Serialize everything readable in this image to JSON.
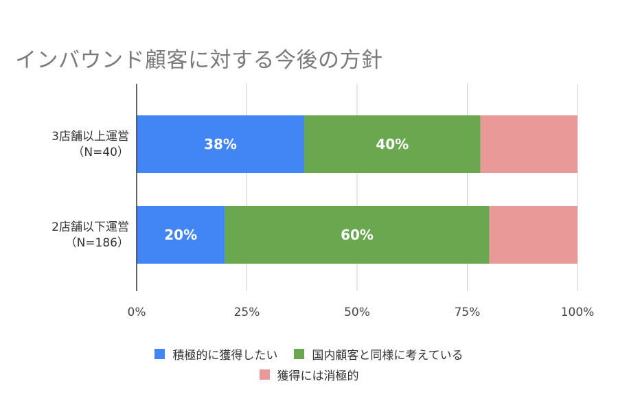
{
  "chart_data": {
    "type": "bar",
    "orientation": "horizontal",
    "stacked": true,
    "title": "インバウンド顧客に対する今後の方針",
    "categories": [
      [
        "3店舗以上運営",
        "（N=40）"
      ],
      [
        "2店舗以下運営",
        "（N=186）"
      ]
    ],
    "series": [
      {
        "name": "積極的に獲得したい",
        "values": [
          38,
          20
        ],
        "labels": [
          "38%",
          "20%"
        ],
        "color": "#4285f4"
      },
      {
        "name": "国内顧客と同様に考えている",
        "values": [
          40,
          60
        ],
        "labels": [
          "40%",
          "60%"
        ],
        "color": "#6aa84f"
      },
      {
        "name": "獲得には消極的",
        "values": [
          22,
          20
        ],
        "labels": [
          "",
          ""
        ],
        "color": "#ea9999"
      }
    ],
    "x_ticks": [
      "0%",
      "25%",
      "50%",
      "75%",
      "100%"
    ],
    "xlim": [
      0,
      100
    ],
    "grid": true,
    "legend_position": "bottom"
  }
}
